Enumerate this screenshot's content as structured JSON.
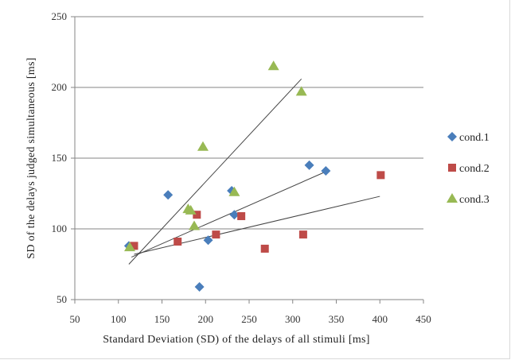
{
  "chart_data": {
    "type": "scatter",
    "xlabel": "Standard Deviation (SD) of the delays of all stimuli [ms]",
    "ylabel": "SD of the delays judged simultaneous [ms]",
    "xlim": [
      50,
      450
    ],
    "ylim": [
      50,
      250
    ],
    "xticks": [
      50,
      100,
      150,
      200,
      250,
      300,
      350,
      400,
      450
    ],
    "yticks": [
      50,
      100,
      150,
      200,
      250
    ],
    "grid": "horizontal",
    "legend_position": "right",
    "series": [
      {
        "name": "cond.1",
        "marker": "diamond",
        "color": "#4a7ebb",
        "points": [
          [
            112,
            88
          ],
          [
            157,
            124
          ],
          [
            193,
            59
          ],
          [
            203,
            92
          ],
          [
            230,
            127
          ],
          [
            233,
            110
          ],
          [
            319,
            145
          ],
          [
            338,
            141
          ]
        ]
      },
      {
        "name": "cond.2",
        "marker": "square",
        "color": "#be4b48",
        "points": [
          [
            118,
            88
          ],
          [
            168,
            91
          ],
          [
            190,
            110
          ],
          [
            212,
            96
          ],
          [
            241,
            109
          ],
          [
            268,
            86
          ],
          [
            312,
            96
          ],
          [
            401,
            138
          ]
        ]
      },
      {
        "name": "cond.3",
        "marker": "triangle",
        "color": "#98b954",
        "points": [
          [
            113,
            87
          ],
          [
            180,
            114
          ],
          [
            183,
            113
          ],
          [
            187,
            102
          ],
          [
            197,
            158
          ],
          [
            233,
            126
          ],
          [
            278,
            215
          ],
          [
            310,
            197
          ]
        ]
      }
    ],
    "trendlines": [
      {
        "series": "cond.1",
        "from": [
          115,
          80
        ],
        "to": [
          340,
          141
        ]
      },
      {
        "series": "cond.2",
        "from": [
          118,
          82
        ],
        "to": [
          400,
          123
        ]
      },
      {
        "series": "cond.3",
        "from": [
          112,
          75
        ],
        "to": [
          310,
          206
        ]
      }
    ]
  }
}
